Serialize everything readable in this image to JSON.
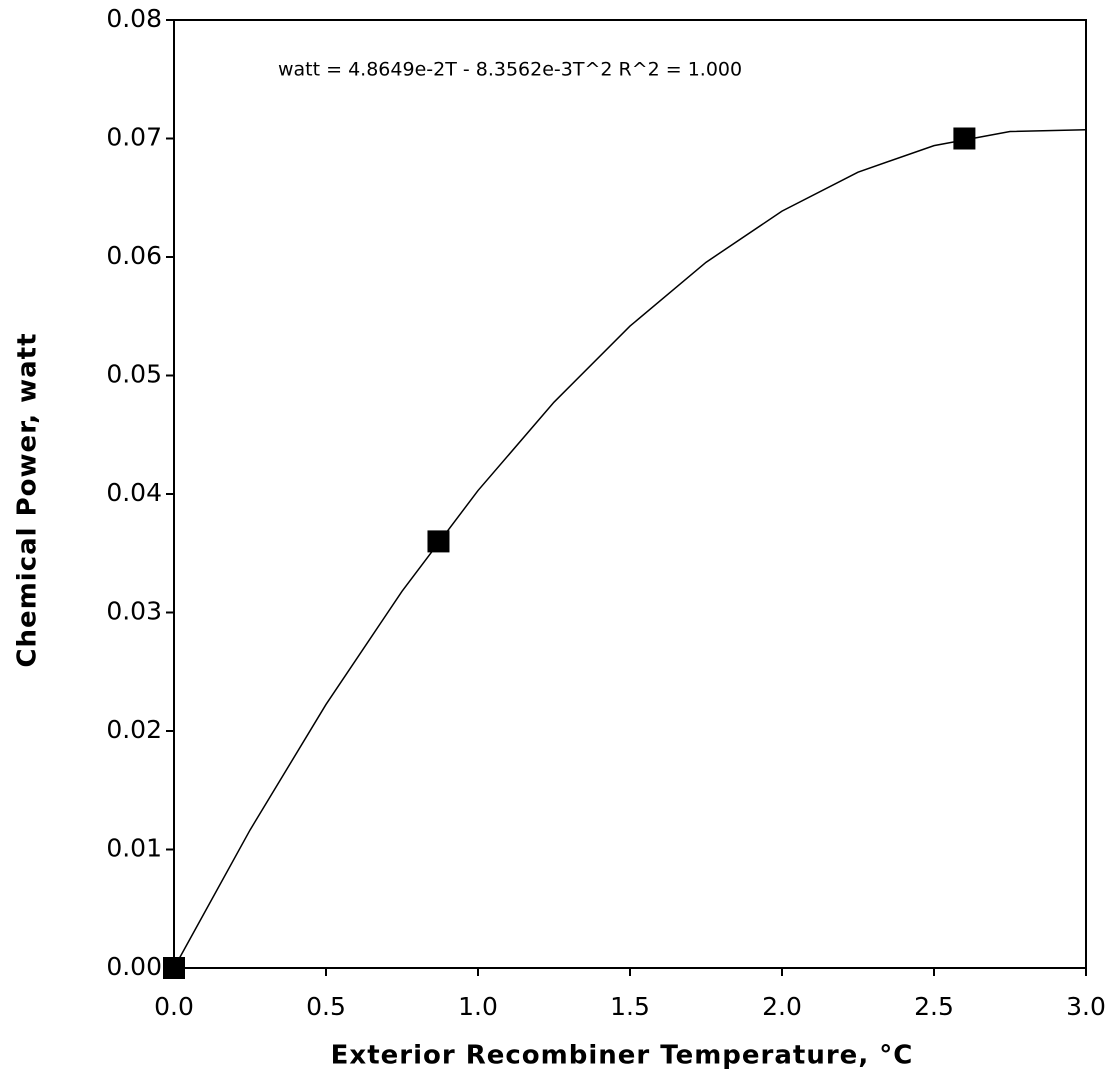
{
  "chart_data": {
    "type": "scatter",
    "annotation": "watt = 4.8649e-2T - 8.3562e-3T^2   R^2 = 1.000",
    "x_label": "Exterior Recombiner Temperature, °C",
    "y_label": "Chemical Power, watt",
    "series": [
      {
        "color": "#000000",
        "marker": "square",
        "x": [
          0,
          0.87,
          2.6
        ],
        "values": [
          0,
          0.036,
          0.07
        ]
      },
      {
        "color": "#000000",
        "marker": "line",
        "x": [
          0,
          0.25,
          0.5,
          0.75,
          1,
          1.25,
          1.5,
          1.75,
          2,
          2.25,
          2.5,
          2.75,
          3
        ],
        "values": [
          0,
          0.01164,
          0.02224,
          0.03179,
          0.04029,
          0.04775,
          0.05417,
          0.05955,
          0.06387,
          0.06716,
          0.0694,
          0.07059,
          0.07074
        ]
      }
    ],
    "xlim": [
      0,
      3
    ],
    "ylim": [
      0,
      0.08
    ],
    "xticks": [
      {
        "value": 0,
        "label": "0.0"
      },
      0.5,
      {
        "value": 1,
        "label": "1.0"
      },
      1.5,
      {
        "value": 2,
        "label": "2.0"
      },
      2.5,
      {
        "value": 3,
        "label": "3.0"
      }
    ],
    "yticks": [
      {
        "value": 0,
        "label": "0.00"
      },
      0.01,
      0.02,
      0.03,
      0.04,
      0.05,
      0.06,
      0.07,
      0.08
    ],
    "grid": false
  }
}
